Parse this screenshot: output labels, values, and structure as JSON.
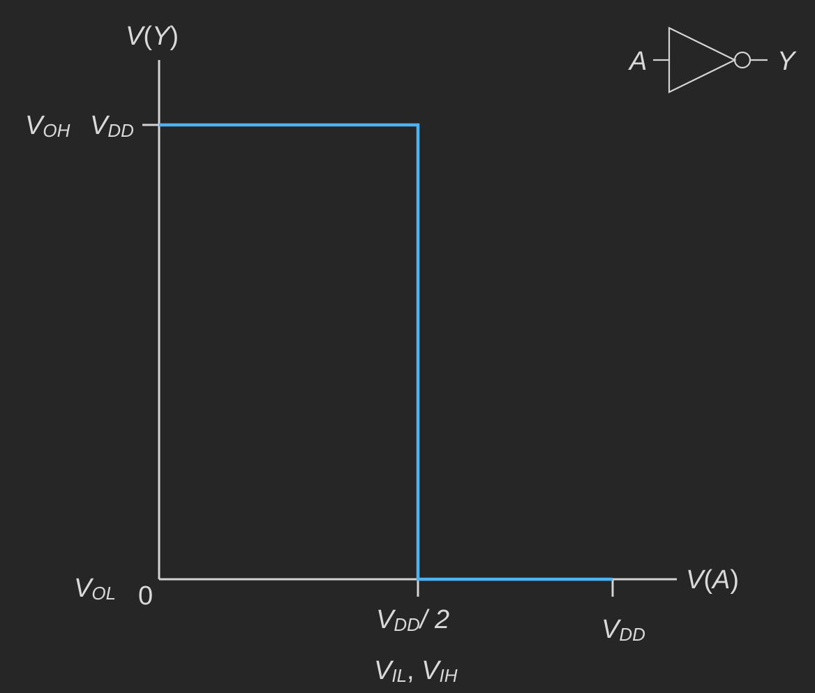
{
  "diagram": {
    "y_axis_label": {
      "main": "V",
      "paren_open": "(",
      "var": "Y",
      "paren_close": ")"
    },
    "x_axis_label": {
      "main": "V",
      "paren_open": "(",
      "var": "A",
      "paren_close": ")"
    },
    "origin_label": "0",
    "voh_label": {
      "main": "V",
      "sub": "OH"
    },
    "vdd_y_label": {
      "main": "V",
      "sub": "DD"
    },
    "vol_label": {
      "main": "V",
      "sub": "OL"
    },
    "vdd_half_label": {
      "main": "V",
      "sub": "DD",
      "suffix": "/ 2"
    },
    "vdd_x_label": {
      "main": "V",
      "sub": "DD"
    },
    "threshold_label": {
      "v1": "V",
      "sub1": "IL",
      "sep": ", ",
      "v2": "V",
      "sub2": "IH"
    },
    "gate": {
      "input_label": "A",
      "output_label": "Y",
      "type": "NOT gate (inverter)"
    },
    "colors": {
      "background": "#262626",
      "curve": "#4db3f2",
      "axis": "#d4d4d4",
      "text": "#d9d9d9"
    }
  }
}
